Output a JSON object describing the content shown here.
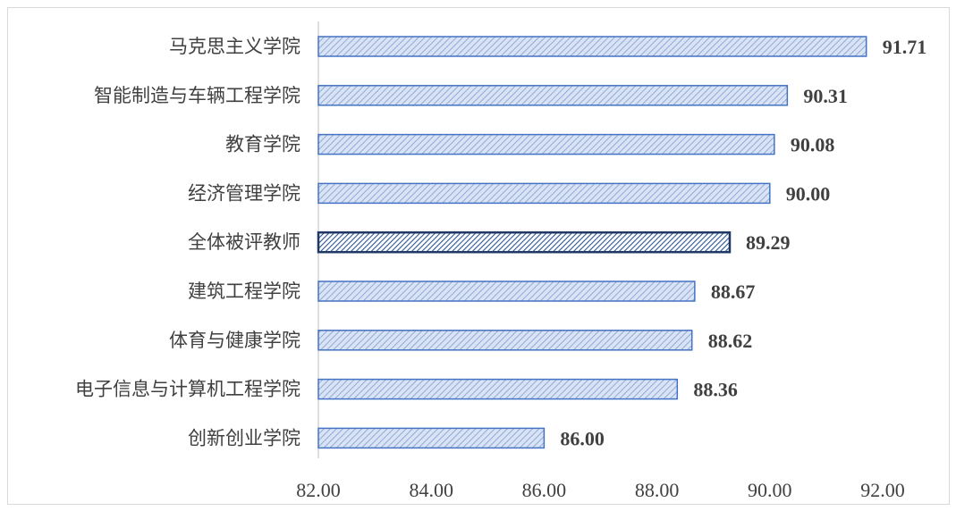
{
  "chart_data": {
    "type": "bar",
    "orientation": "horizontal",
    "categories": [
      "马克思主义学院",
      "智能制造与车辆工程学院",
      "教育学院",
      "经济管理学院",
      "全体被评教师",
      "建筑工程学院",
      "体育与健康学院",
      "电子信息与计算机工程学院",
      "创新创业学院"
    ],
    "values": [
      91.71,
      90.31,
      90.08,
      90.0,
      89.29,
      88.67,
      88.62,
      88.36,
      86.0
    ],
    "value_labels": [
      "91.71",
      "90.31",
      "90.08",
      "90.00",
      "89.29",
      "88.67",
      "88.62",
      "88.36",
      "86.00"
    ],
    "highlight_category": "全体被评教师",
    "xlim": [
      82,
      92
    ],
    "xticks": [
      "82.00",
      "84.00",
      "86.00",
      "88.00",
      "90.00",
      "92.00"
    ],
    "xtick_values": [
      82,
      84,
      86,
      88,
      90,
      92
    ],
    "grid": false,
    "legend": "none",
    "colors": {
      "bar_fill": "#dae3f3",
      "bar_hatch": "#8eaadb",
      "bar_border": "#4472c4",
      "highlight_border": "#1f3864",
      "highlight_hatch": "#2f5597",
      "text": "#404040",
      "axis": "#bfbfbf"
    }
  }
}
